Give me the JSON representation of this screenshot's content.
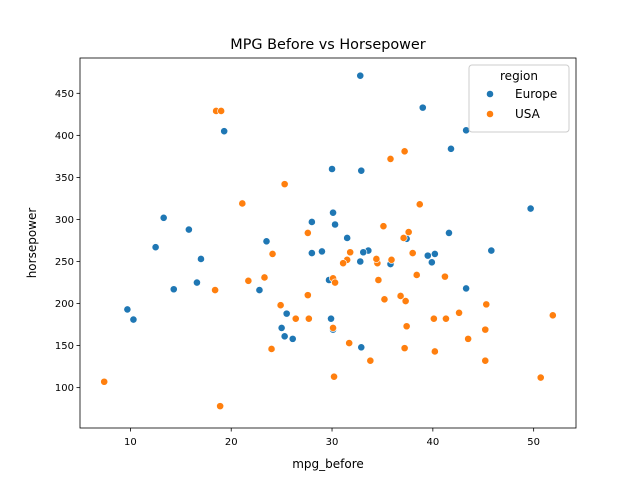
{
  "chart_data": {
    "type": "scatter",
    "title": "MPG Before vs Horsepower",
    "xlabel": "mpg_before",
    "ylabel": "horsepower",
    "xlim": [
      5.0,
      54.2
    ],
    "ylim": [
      52,
      492
    ],
    "xticks": [
      10,
      20,
      30,
      40,
      50
    ],
    "yticks": [
      100,
      150,
      200,
      250,
      300,
      350,
      400,
      450
    ],
    "grid": false,
    "legend": {
      "title": "region",
      "position": "top-right"
    },
    "series": [
      {
        "name": "Europe",
        "color": "#1f77b4",
        "points": [
          [
            32.8,
            471
          ],
          [
            39.0,
            433
          ],
          [
            43.3,
            406
          ],
          [
            19.3,
            405
          ],
          [
            41.8,
            384
          ],
          [
            30.0,
            360
          ],
          [
            32.9,
            358
          ],
          [
            49.7,
            313
          ],
          [
            13.3,
            302
          ],
          [
            30.1,
            308
          ],
          [
            15.8,
            288
          ],
          [
            28.0,
            297
          ],
          [
            30.3,
            294
          ],
          [
            41.6,
            284
          ],
          [
            31.5,
            278
          ],
          [
            37.4,
            277
          ],
          [
            23.5,
            274
          ],
          [
            12.5,
            267
          ],
          [
            29.0,
            262
          ],
          [
            33.6,
            263
          ],
          [
            33.1,
            261
          ],
          [
            28.0,
            260
          ],
          [
            45.8,
            263
          ],
          [
            40.2,
            259
          ],
          [
            39.5,
            257
          ],
          [
            17.0,
            253
          ],
          [
            32.8,
            250
          ],
          [
            39.9,
            249
          ],
          [
            35.8,
            247
          ],
          [
            16.6,
            225
          ],
          [
            29.7,
            228
          ],
          [
            14.3,
            217
          ],
          [
            22.8,
            216
          ],
          [
            43.3,
            218
          ],
          [
            9.7,
            193
          ],
          [
            25.5,
            188
          ],
          [
            10.3,
            181
          ],
          [
            29.9,
            182
          ],
          [
            25.0,
            171
          ],
          [
            30.1,
            169
          ],
          [
            25.3,
            161
          ],
          [
            26.1,
            158
          ],
          [
            32.9,
            148
          ]
        ]
      },
      {
        "name": "USA",
        "color": "#ff7f0e",
        "points": [
          [
            18.5,
            429
          ],
          [
            19.0,
            429
          ],
          [
            37.2,
            381
          ],
          [
            35.8,
            372
          ],
          [
            25.3,
            342
          ],
          [
            21.1,
            319
          ],
          [
            38.7,
            318
          ],
          [
            35.1,
            292
          ],
          [
            37.6,
            285
          ],
          [
            27.6,
            284
          ],
          [
            37.1,
            278
          ],
          [
            31.8,
            261
          ],
          [
            24.1,
            259
          ],
          [
            38.0,
            260
          ],
          [
            23.3,
            231
          ],
          [
            35.9,
            252
          ],
          [
            31.5,
            252
          ],
          [
            31.1,
            248
          ],
          [
            34.5,
            248
          ],
          [
            34.4,
            253
          ],
          [
            38.4,
            234
          ],
          [
            30.1,
            230
          ],
          [
            41.2,
            232
          ],
          [
            21.7,
            227
          ],
          [
            30.3,
            225
          ],
          [
            34.6,
            228
          ],
          [
            18.4,
            216
          ],
          [
            27.6,
            210
          ],
          [
            36.8,
            209
          ],
          [
            35.2,
            205
          ],
          [
            37.3,
            203
          ],
          [
            45.3,
            199
          ],
          [
            24.9,
            198
          ],
          [
            42.6,
            189
          ],
          [
            51.9,
            186
          ],
          [
            26.4,
            182
          ],
          [
            27.7,
            182
          ],
          [
            40.1,
            182
          ],
          [
            41.3,
            182
          ],
          [
            37.4,
            173
          ],
          [
            30.1,
            171
          ],
          [
            45.2,
            169
          ],
          [
            43.5,
            158
          ],
          [
            31.7,
            153
          ],
          [
            24.0,
            146
          ],
          [
            37.2,
            147
          ],
          [
            40.2,
            143
          ],
          [
            33.8,
            132
          ],
          [
            45.2,
            132
          ],
          [
            30.2,
            113
          ],
          [
            50.7,
            112
          ],
          [
            7.4,
            107
          ],
          [
            18.9,
            78
          ]
        ]
      }
    ]
  }
}
